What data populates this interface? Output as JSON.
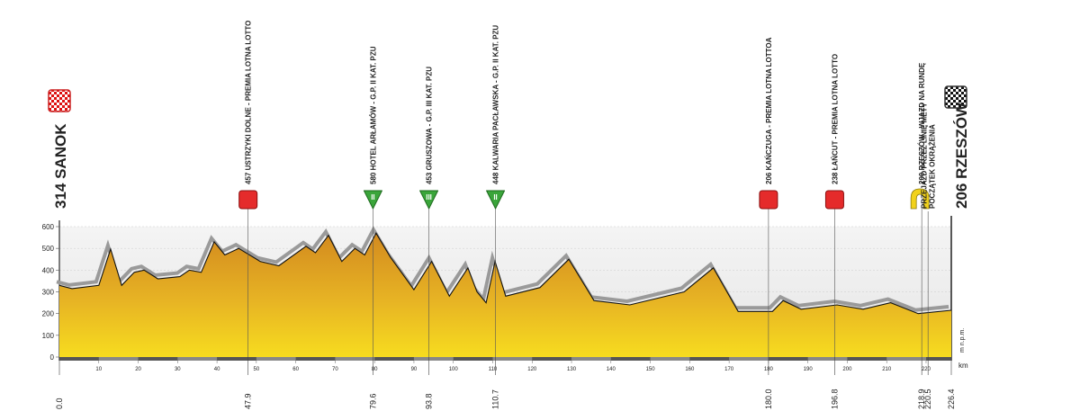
{
  "chart_data": {
    "type": "area",
    "start_label": "314 SANOK",
    "finish_label": "206 RZESZÓW",
    "y_axis_label": "m n.p.m.",
    "x_axis_label": "km",
    "x": [
      0,
      3.2,
      10,
      13,
      15.8,
      19,
      21.5,
      25,
      30.6,
      33,
      36,
      39.3,
      42,
      45.5,
      51,
      55.7,
      62.6,
      65,
      68.3,
      71.7,
      75,
      77.5,
      80.4,
      84,
      90,
      94.5,
      99,
      103.7,
      106,
      108.3,
      110.6,
      113.3,
      122,
      129.3,
      135.7,
      144.8,
      158.6,
      166,
      172.3,
      181,
      183.7,
      188.3,
      197.4,
      204,
      211,
      218,
      226.4
    ],
    "values": [
      330,
      315,
      330,
      497,
      330,
      390,
      400,
      360,
      370,
      400,
      390,
      530,
      470,
      500,
      440,
      420,
      510,
      480,
      560,
      440,
      500,
      470,
      570,
      460,
      310,
      440,
      280,
      410,
      300,
      250,
      440,
      280,
      320,
      450,
      260,
      240,
      300,
      410,
      210,
      210,
      260,
      220,
      240,
      220,
      250,
      200,
      215
    ],
    "xlim": [
      0,
      226.4
    ],
    "ylim": [
      0,
      600
    ],
    "yticks": [
      0,
      100,
      200,
      300,
      400,
      500,
      600
    ],
    "xticks": [
      10,
      20,
      30,
      40,
      50,
      60,
      70,
      80,
      90,
      100,
      110,
      120,
      130,
      140,
      150,
      160,
      170,
      180,
      190,
      200,
      210,
      220
    ],
    "key_xticks": [
      {
        "value": 0,
        "label": "0.0"
      },
      47.9,
      79.6,
      93.8,
      110.7,
      {
        "value": 180,
        "label": "180.0"
      },
      196.8,
      218.9,
      220.5,
      226.4
    ],
    "annotations": [
      {
        "x": 47.9,
        "marker": "sprint",
        "label": [
          "457 USTRZYKI DOLNE - PREMIA LOTNA LOTTO"
        ]
      },
      {
        "x": 79.6,
        "marker": "kom",
        "category": "II",
        "label": [
          "580 HOTEL ARŁAMÓW - G.P. II KAT. PZU"
        ]
      },
      {
        "x": 93.8,
        "marker": "kom",
        "category": "III",
        "label": [
          "453 GRUSZOWA - G.P. III KAT.  PZU"
        ]
      },
      {
        "x": 110.7,
        "marker": "kom",
        "category": "II",
        "label": [
          "448 KALWARIA PACŁAWSKA - G.P. II KAT. PZU"
        ]
      },
      {
        "x": 180,
        "marker": "sprint",
        "label": [
          "206 KAŃCZUGA - PREMIA LOTNA LOTTOA"
        ]
      },
      {
        "x": 196.8,
        "marker": "sprint",
        "label": [
          "238 ŁAŃCUT - PREMIA LOTNA LOTTO"
        ]
      },
      {
        "x": 218.9,
        "marker": "lap",
        "label": [
          "200 RZESZÓW - WJAZD NA RUNDĘ"
        ]
      },
      {
        "x": 220.5,
        "marker": "none",
        "label": [
          "PRZEJAZD PRZEZ LINIĘ METY",
          "POCZĄTEK OKRĄŻENIA"
        ]
      }
    ]
  }
}
